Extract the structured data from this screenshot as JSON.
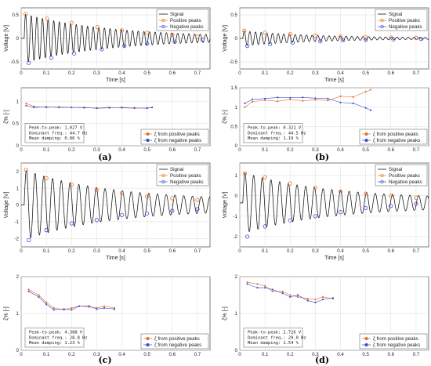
{
  "figure_labels": [
    "(a)",
    "(b)",
    "(c)",
    "(d)"
  ],
  "chart_data": [
    {
      "type": "line",
      "panel": "(a)",
      "role": "signal",
      "xlabel": "Time [s]",
      "ylabel": "Voltage [V]",
      "xlim": [
        0,
        0.75
      ],
      "ylim": [
        -0.65,
        0.65
      ],
      "xticks": [
        0,
        0.1,
        0.2,
        0.3,
        0.4,
        0.5,
        0.6,
        0.7
      ],
      "yticks": [
        -0.5,
        0,
        0.5
      ],
      "yticklabels": [
        "-0.5",
        "0",
        "0.5"
      ],
      "grid": true,
      "legend_position": "top-right",
      "legend": [
        "Signal",
        "Positive peaks",
        "Negative peaks"
      ],
      "signal": {
        "frequency_hz": 44.7,
        "offset": 0.0,
        "start": 0.012,
        "amp_start": 0.52,
        "amp_end": 0.03,
        "decay": 3.0,
        "t_end": 0.75
      },
      "series": [
        {
          "name": "Positive peaks",
          "color": "#e8702a",
          "x": [
            0.018,
            0.103,
            0.2,
            0.303,
            0.4,
            0.5,
            0.6,
            0.7
          ],
          "y": [
            0.52,
            0.42,
            0.33,
            0.24,
            0.17,
            0.12,
            0.08,
            0.04
          ]
        },
        {
          "name": "Negative peaks",
          "color": "#3b4fd8",
          "x": [
            0.03,
            0.12,
            0.21,
            0.32,
            0.41,
            0.5,
            0.61,
            0.72
          ],
          "y": [
            -0.52,
            -0.41,
            -0.32,
            -0.23,
            -0.16,
            -0.11,
            -0.07,
            -0.03
          ]
        }
      ]
    },
    {
      "type": "line",
      "panel": "(a)",
      "role": "damping",
      "xlabel": "",
      "ylabel": "ζ% [-]",
      "xlim": [
        0,
        0.75
      ],
      "ylim": [
        0,
        1.3
      ],
      "xticks": [
        0,
        0.1,
        0.2,
        0.3,
        0.4,
        0.5,
        0.6,
        0.7
      ],
      "yticks": [
        0,
        0.5,
        1
      ],
      "yticklabels": [
        "0",
        "0.5",
        "1"
      ],
      "grid": true,
      "legend_position": "bottom-right",
      "legend": [
        "ζ from positive peaks",
        "ζ from negative peaks"
      ],
      "annotation": [
        "Peak-to-peak: 1.027 V",
        "Dominant freq.: 44.7 Hz",
        "Mean damping: 0.86 %"
      ],
      "series": [
        {
          "name": "ζ from positive peaks",
          "color": "#e8702a",
          "x": [
            0.02,
            0.05,
            0.1,
            0.15,
            0.2,
            0.25,
            0.3,
            0.35,
            0.4,
            0.45,
            0.5,
            0.52
          ],
          "y": [
            0.95,
            0.88,
            0.86,
            0.87,
            0.86,
            0.85,
            0.85,
            0.86,
            0.85,
            0.84,
            0.85,
            0.86
          ]
        },
        {
          "name": "ζ from negative peaks",
          "color": "#3b4fd8",
          "x": [
            0.02,
            0.05,
            0.1,
            0.15,
            0.2,
            0.25,
            0.3,
            0.35,
            0.4,
            0.45,
            0.5,
            0.52
          ],
          "y": [
            0.9,
            0.86,
            0.87,
            0.86,
            0.86,
            0.86,
            0.84,
            0.85,
            0.86,
            0.85,
            0.84,
            0.86
          ]
        }
      ]
    },
    {
      "type": "line",
      "panel": "(b)",
      "role": "signal",
      "xlabel": "Time [s]",
      "ylabel": "Voltage [V]",
      "xlim": [
        0,
        0.75
      ],
      "ylim": [
        -0.65,
        0.65
      ],
      "xticks": [
        0,
        0.1,
        0.2,
        0.3,
        0.4,
        0.5,
        0.6,
        0.7
      ],
      "yticks": [
        -0.5,
        0,
        0.5
      ],
      "yticklabels": [
        "-0.5",
        "0",
        "0.5"
      ],
      "grid": true,
      "legend_position": "top-right",
      "legend": [
        "Signal",
        "Positive peaks",
        "Negative peaks"
      ],
      "signal": {
        "frequency_hz": 44.5,
        "offset": 0.0,
        "start": 0.012,
        "amp_start": 0.16,
        "amp_end": 0.01,
        "decay": 3.5,
        "t_end": 0.75
      },
      "series": [
        {
          "name": "Positive peaks",
          "color": "#e8702a",
          "x": [
            0.018,
            0.1,
            0.2,
            0.3,
            0.4,
            0.5,
            0.6,
            0.7
          ],
          "y": [
            0.16,
            0.12,
            0.09,
            0.06,
            0.04,
            0.03,
            0.02,
            0.01
          ]
        },
        {
          "name": "Negative peaks",
          "color": "#3b4fd8",
          "x": [
            0.03,
            0.12,
            0.21,
            0.32,
            0.41,
            0.5,
            0.61,
            0.72
          ],
          "y": [
            -0.16,
            -0.12,
            -0.09,
            -0.06,
            -0.04,
            -0.03,
            -0.02,
            -0.01
          ]
        }
      ]
    },
    {
      "type": "line",
      "panel": "(b)",
      "role": "damping",
      "xlabel": "",
      "ylabel": "ζ% [-]",
      "xlim": [
        0,
        0.75
      ],
      "ylim": [
        0,
        1.5
      ],
      "xticks": [
        0,
        0.1,
        0.2,
        0.3,
        0.4,
        0.5,
        0.6,
        0.7
      ],
      "yticks": [
        0,
        0.5,
        1,
        1.5
      ],
      "yticklabels": [
        "0",
        "0.5",
        "1",
        "1.5"
      ],
      "grid": true,
      "legend_position": "bottom-right",
      "legend": [
        "ζ from positive peaks",
        "ζ from negative peaks"
      ],
      "annotation": [
        "Peak-to-peak: 0.321 V",
        "Dominant freq.: 44.5 Hz",
        "Mean damping: 1.19 %"
      ],
      "series": [
        {
          "name": "ζ from positive peaks",
          "color": "#e8702a",
          "x": [
            0.02,
            0.05,
            0.1,
            0.15,
            0.2,
            0.25,
            0.3,
            0.35,
            0.4,
            0.45,
            0.5,
            0.52
          ],
          "y": [
            1.0,
            1.14,
            1.18,
            1.15,
            1.2,
            1.16,
            1.19,
            1.17,
            1.28,
            1.26,
            1.4,
            1.45
          ]
        },
        {
          "name": "ζ from negative peaks",
          "color": "#3b4fd8",
          "x": [
            0.02,
            0.05,
            0.1,
            0.15,
            0.2,
            0.25,
            0.3,
            0.35,
            0.4,
            0.45,
            0.5,
            0.52
          ],
          "y": [
            1.1,
            1.2,
            1.22,
            1.25,
            1.24,
            1.25,
            1.23,
            1.22,
            1.12,
            1.1,
            0.98,
            0.92
          ]
        }
      ]
    },
    {
      "type": "line",
      "panel": "(c)",
      "role": "signal",
      "xlabel": "Time [s]",
      "ylabel": "Voltage [V]",
      "xlim": [
        0,
        0.75
      ],
      "ylim": [
        -2.5,
        2.5
      ],
      "xticks": [
        0,
        0.1,
        0.2,
        0.3,
        0.4,
        0.5,
        0.6,
        0.7
      ],
      "yticks": [
        -2,
        -1,
        0,
        1,
        2
      ],
      "yticklabels": [
        "-2",
        "-1",
        "0",
        "1",
        "2"
      ],
      "grid": true,
      "legend_position": "top-right",
      "legend": [
        "Signal",
        "Positive peaks",
        "Negative peaks"
      ],
      "signal": {
        "frequency_hz": 28.8,
        "offset": 0.0,
        "start": 0.012,
        "amp_start": 2.1,
        "amp_end": 0.28,
        "decay": 3.0,
        "t_end": 0.75
      },
      "series": [
        {
          "name": "Positive peaks",
          "color": "#e8702a",
          "x": [
            0.02,
            0.1,
            0.2,
            0.3,
            0.4,
            0.5,
            0.6,
            0.7
          ],
          "y": [
            2.1,
            1.6,
            1.2,
            0.9,
            0.7,
            0.5,
            0.4,
            0.3
          ]
        },
        {
          "name": "Negative peaks",
          "color": "#3b4fd8",
          "x": [
            0.03,
            0.1,
            0.2,
            0.3,
            0.4,
            0.5,
            0.6,
            0.7
          ],
          "y": [
            -2.1,
            -1.5,
            -1.1,
            -0.9,
            -0.6,
            -0.5,
            -0.35,
            -0.25
          ]
        }
      ]
    },
    {
      "type": "line",
      "panel": "(c)",
      "role": "damping",
      "xlabel": "",
      "ylabel": "ζ% [-]",
      "xlim": [
        0,
        0.75
      ],
      "ylim": [
        0,
        2
      ],
      "xticks": [
        0,
        0.1,
        0.2,
        0.3,
        0.4,
        0.5,
        0.6,
        0.7
      ],
      "yticks": [
        0,
        1,
        2
      ],
      "yticklabels": [
        "0",
        "1",
        "2"
      ],
      "grid": true,
      "legend_position": "bottom-right",
      "legend": [
        "ζ from positive peaks",
        "ζ from negative peaks"
      ],
      "annotation": [
        "Peak-to-peak: 4.388 V",
        "Dominant freq.: 28.8 Hz",
        "Mean damping: 1.23 %"
      ],
      "series": [
        {
          "name": "ζ from positive peaks",
          "color": "#e8702a",
          "x": [
            0.03,
            0.07,
            0.1,
            0.13,
            0.17,
            0.2,
            0.23,
            0.27,
            0.3,
            0.33,
            0.37
          ],
          "y": [
            1.65,
            1.5,
            1.3,
            1.15,
            1.1,
            1.15,
            1.2,
            1.18,
            1.15,
            1.2,
            1.15
          ]
        },
        {
          "name": "ζ from negative peaks",
          "color": "#3b4fd8",
          "x": [
            0.03,
            0.07,
            0.1,
            0.13,
            0.17,
            0.2,
            0.23,
            0.27,
            0.3,
            0.33,
            0.37
          ],
          "y": [
            1.6,
            1.45,
            1.25,
            1.1,
            1.12,
            1.1,
            1.2,
            1.2,
            1.12,
            1.15,
            1.12
          ]
        }
      ]
    },
    {
      "type": "line",
      "panel": "(d)",
      "role": "signal",
      "xlabel": "Time [s]",
      "ylabel": "Voltage [V]",
      "xlim": [
        0,
        0.75
      ],
      "ylim": [
        -2.5,
        1.6
      ],
      "xticks": [
        0,
        0.1,
        0.2,
        0.3,
        0.4,
        0.5,
        0.6,
        0.7
      ],
      "yticks": [
        -2,
        -1,
        0,
        1
      ],
      "yticklabels": [
        "-2",
        "-1",
        "0",
        "1"
      ],
      "grid": true,
      "legend_position": "top-right",
      "legend": [
        "Signal",
        "Positive peaks",
        "Negative peaks"
      ],
      "signal": {
        "frequency_hz": 29.0,
        "offset": -0.35,
        "start": 0.012,
        "amp_start": 1.5,
        "amp_end": 0.2,
        "decay": 3.0,
        "t_end": 0.75
      },
      "series": [
        {
          "name": "Positive peaks",
          "color": "#e8702a",
          "x": [
            0.02,
            0.1,
            0.2,
            0.3,
            0.4,
            0.5,
            0.6,
            0.7
          ],
          "y": [
            1.1,
            0.9,
            0.6,
            0.4,
            0.2,
            0.1,
            0.0,
            -0.1
          ]
        },
        {
          "name": "Negative peaks",
          "color": "#3b4fd8",
          "x": [
            0.03,
            0.1,
            0.2,
            0.3,
            0.4,
            0.5,
            0.6,
            0.7
          ],
          "y": [
            -2.0,
            -1.5,
            -1.2,
            -1.0,
            -0.8,
            -0.6,
            -0.5,
            -0.4
          ]
        }
      ]
    },
    {
      "type": "line",
      "panel": "(d)",
      "role": "damping",
      "xlabel": "",
      "ylabel": "ζ% [-]",
      "xlim": [
        0,
        0.75
      ],
      "ylim": [
        0,
        2
      ],
      "xticks": [
        0,
        0.1,
        0.2,
        0.3,
        0.4,
        0.5,
        0.6,
        0.7
      ],
      "yticks": [
        0,
        1,
        2
      ],
      "yticklabels": [
        "0",
        "1",
        "2"
      ],
      "grid": true,
      "legend_position": "bottom-right",
      "legend": [
        "ζ from positive peaks",
        "ζ from negative peaks"
      ],
      "annotation": [
        "Peak-to-peak: 2.726 V",
        "Dominant freq.: 29.0 Hz",
        "Mean damping: 1.54 %"
      ],
      "series": [
        {
          "name": "ζ from positive peaks",
          "color": "#e8702a",
          "x": [
            0.03,
            0.07,
            0.1,
            0.13,
            0.17,
            0.2,
            0.23,
            0.27,
            0.3,
            0.33,
            0.37
          ],
          "y": [
            1.85,
            1.8,
            1.75,
            1.6,
            1.6,
            1.5,
            1.45,
            1.4,
            1.38,
            1.45,
            1.4
          ]
        },
        {
          "name": "ζ from negative peaks",
          "color": "#3b4fd8",
          "x": [
            0.03,
            0.07,
            0.1,
            0.13,
            0.17,
            0.2,
            0.23,
            0.27,
            0.3,
            0.33,
            0.37
          ],
          "y": [
            1.8,
            1.7,
            1.7,
            1.65,
            1.55,
            1.45,
            1.5,
            1.35,
            1.3,
            1.38,
            1.42
          ]
        }
      ]
    }
  ]
}
